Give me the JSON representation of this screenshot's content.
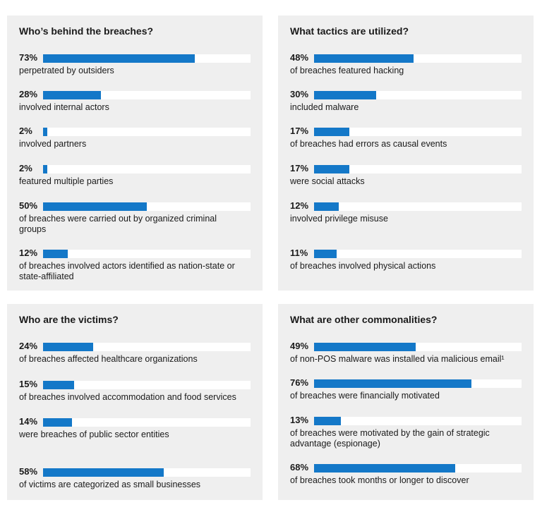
{
  "chart_data": [
    {
      "type": "bar",
      "title": "Who’s behind the breaches?",
      "values": [
        73,
        28,
        2,
        2,
        50,
        12
      ],
      "value_labels": [
        "73%",
        "28%",
        "2%",
        "2%",
        "50%",
        "12%"
      ],
      "categories": [
        "perpetrated by outsiders",
        "involved internal actors",
        "involved partners",
        "featured multiple parties",
        "of breaches were carried out by organized criminal groups",
        "of breaches involved actors identified as nation-state or state-affiliated"
      ],
      "ylim": [
        0,
        100
      ]
    },
    {
      "type": "bar",
      "title": "What tactics are utilized?",
      "values": [
        48,
        30,
        17,
        17,
        12,
        11
      ],
      "value_labels": [
        "48%",
        "30%",
        "17%",
        "17%",
        "12%",
        "11%"
      ],
      "categories": [
        "of breaches featured hacking",
        "included malware",
        "of breaches had errors as causal events",
        "were social attacks",
        "involved privilege misuse",
        "of breaches involved physical actions"
      ],
      "ylim": [
        0,
        100
      ]
    },
    {
      "type": "bar",
      "title": "Who are the victims?",
      "values": [
        24,
        15,
        14,
        58
      ],
      "value_labels": [
        "24%",
        "15%",
        "14%",
        "58%"
      ],
      "categories": [
        "of breaches affected healthcare organizations",
        "of breaches involved accommodation and food services",
        "were breaches of public sector entities",
        "of victims are categorized as small businesses"
      ],
      "ylim": [
        0,
        100
      ]
    },
    {
      "type": "bar",
      "title": "What are other commonalities?",
      "values": [
        49,
        76,
        13,
        68
      ],
      "value_labels": [
        "49%",
        "76%",
        "13%",
        "68%"
      ],
      "categories": [
        "of non-POS malware was installed via malicious email¹",
        "of breaches were financially motivated",
        "of breaches were motivated by the gain of strategic advantage (espionage)",
        "of breaches took months or longer to discover"
      ],
      "ylim": [
        0,
        100
      ]
    }
  ],
  "colors": {
    "bar": "#1478c8",
    "track": "#ffffff",
    "panel": "#efefef"
  }
}
